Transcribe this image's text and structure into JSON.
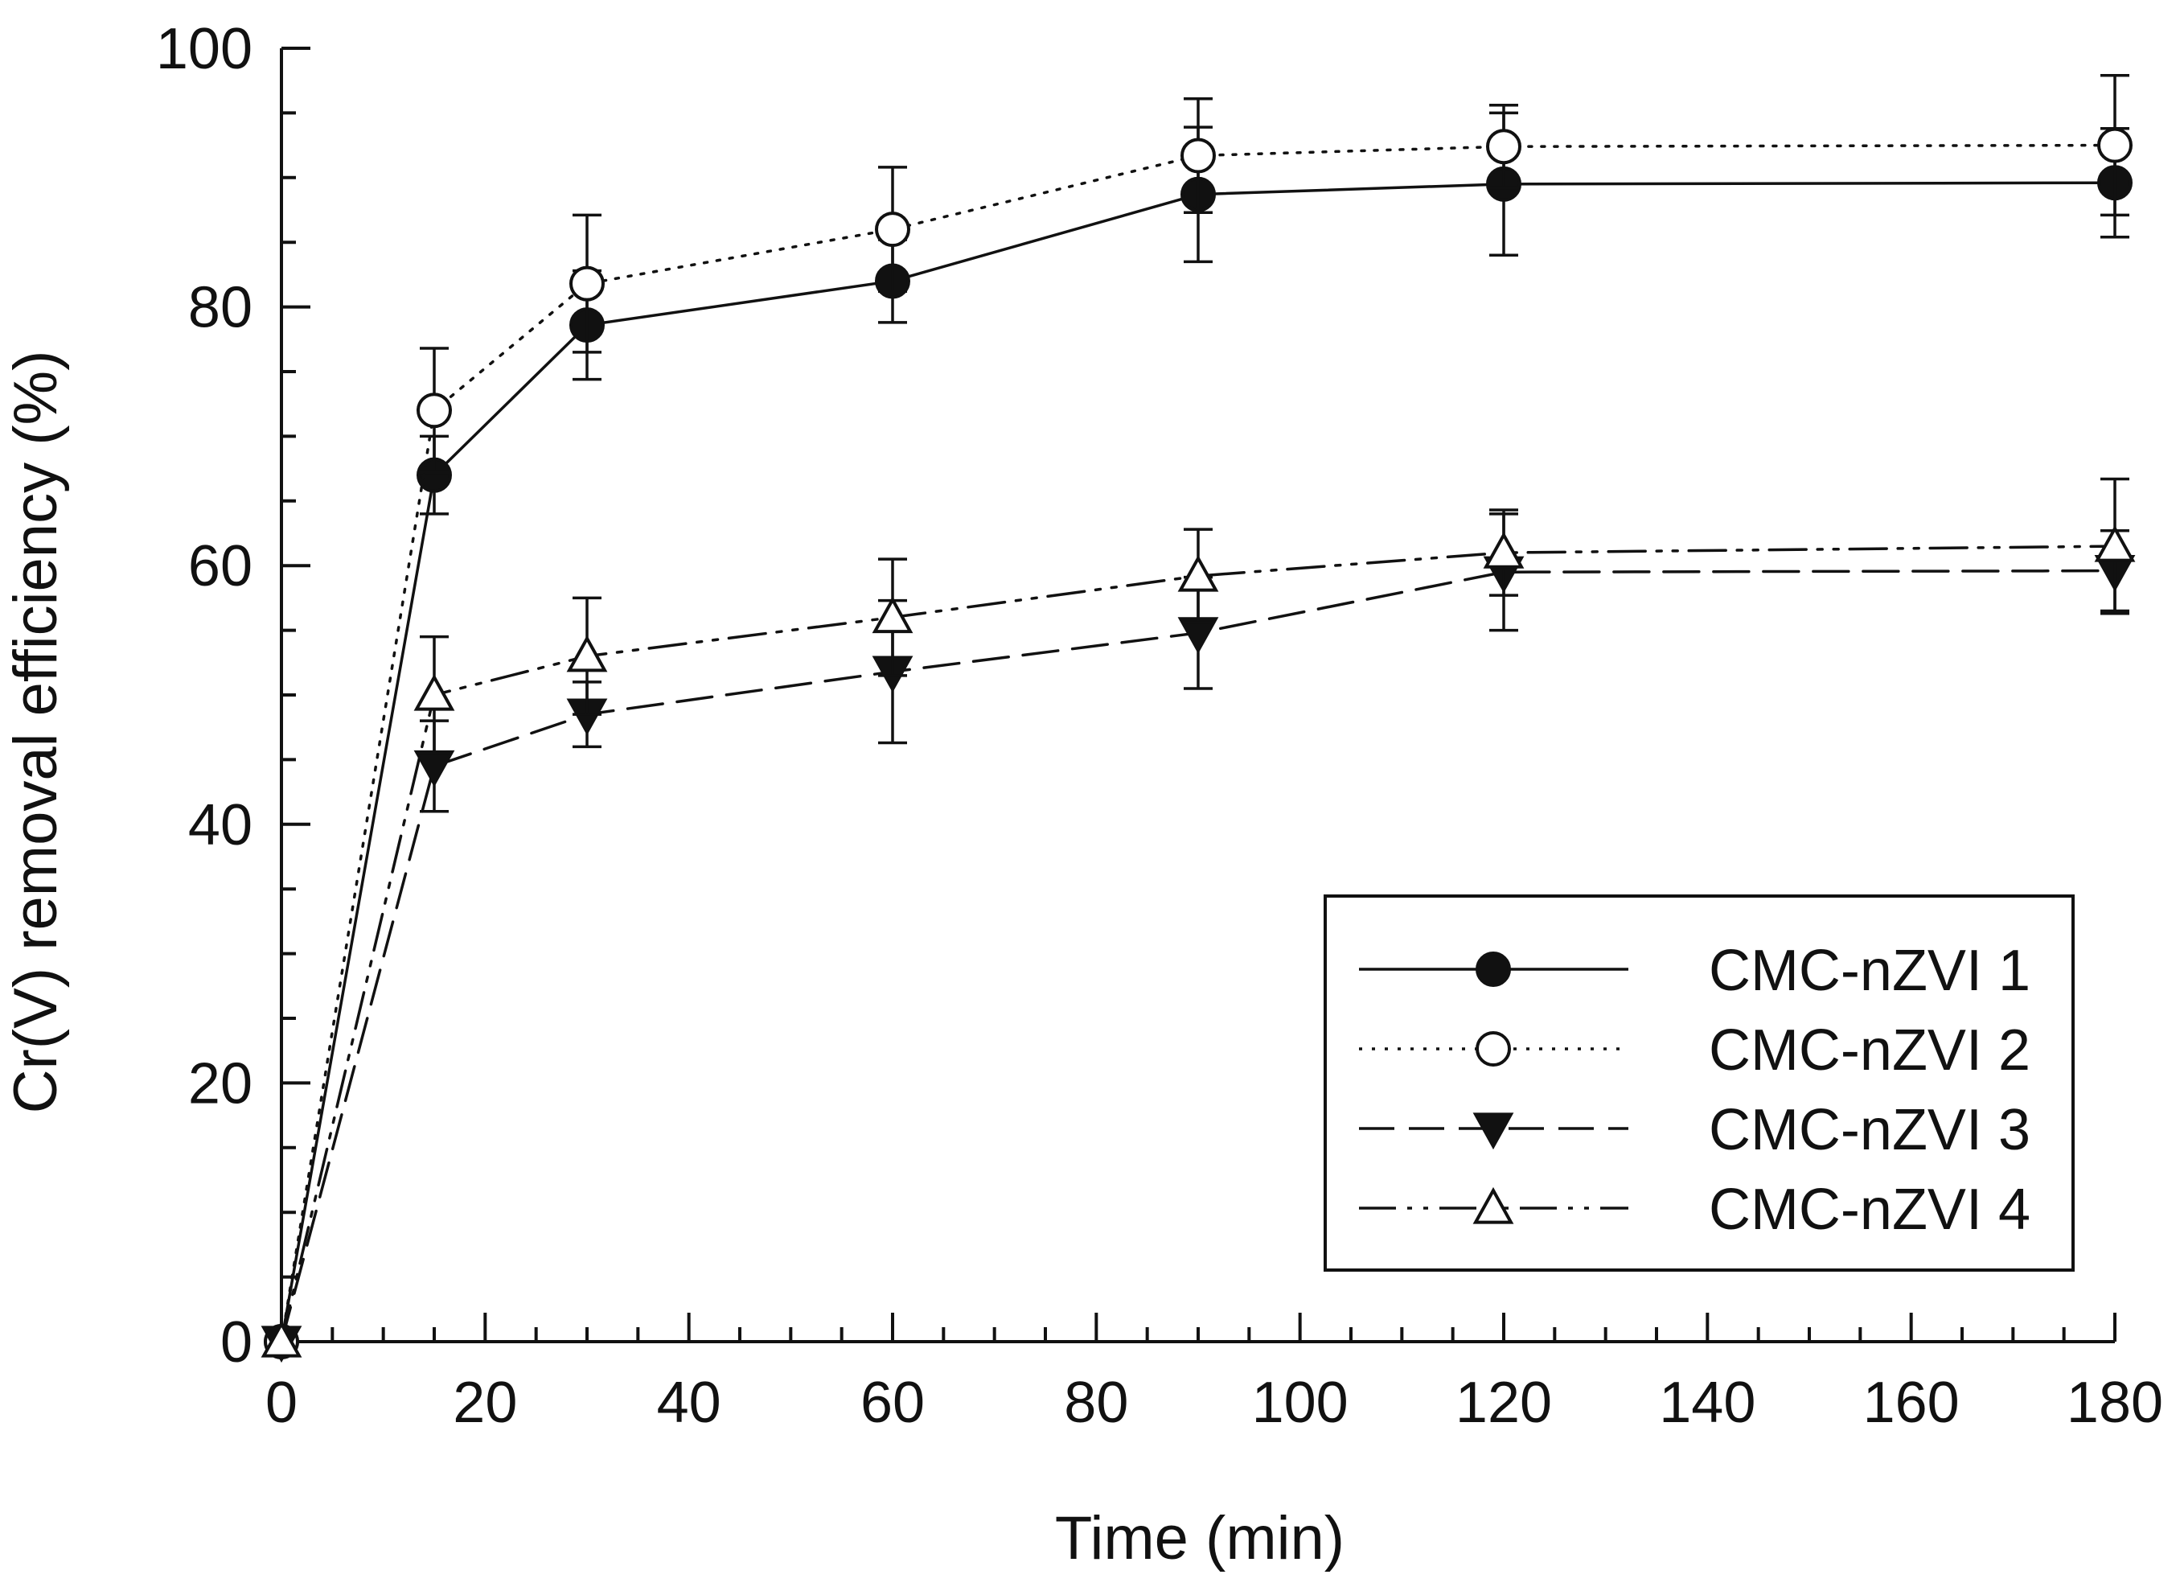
{
  "chart_data": {
    "type": "line",
    "title": "",
    "xlabel": "Time (min)",
    "ylabel": "Cr(V) removal efficiency (%)",
    "xlim": [
      0,
      180
    ],
    "ylim": [
      0,
      100
    ],
    "x_ticks": [
      0,
      20,
      40,
      60,
      80,
      100,
      120,
      140,
      160,
      180
    ],
    "y_ticks": [
      0,
      20,
      40,
      60,
      80,
      100
    ],
    "grid": false,
    "legend_position": "bottom-right",
    "x": [
      0,
      15,
      30,
      60,
      90,
      120,
      180
    ],
    "series": [
      {
        "name": "CMC-nZVI 1",
        "marker": "filled-circle",
        "line": "solid",
        "values": [
          0,
          67,
          78.6,
          82,
          88.7,
          89.5,
          89.6
        ],
        "errors": [
          0,
          3,
          4.2,
          3.2,
          5.2,
          5.5,
          4.2
        ]
      },
      {
        "name": "CMC-nZVI 2",
        "marker": "open-circle",
        "line": "dotted",
        "values": [
          0,
          72,
          81.8,
          86,
          91.7,
          92.4,
          92.5
        ],
        "errors": [
          0,
          4.8,
          5.3,
          4.8,
          4.4,
          3.2,
          5.4
        ]
      },
      {
        "name": "CMC-nZVI 3",
        "marker": "filled-triangle-down",
        "line": "dashed",
        "values": [
          0,
          44.5,
          48.5,
          51.8,
          54.8,
          59.5,
          59.6
        ],
        "errors": [
          0,
          3.5,
          2.5,
          5.5,
          4.3,
          4.5,
          3.1
        ]
      },
      {
        "name": "CMC-nZVI 4",
        "marker": "open-triangle-up",
        "line": "dash-dot-dot",
        "values": [
          0,
          50,
          53,
          56,
          59.2,
          61,
          61.5
        ],
        "errors": [
          0,
          4.5,
          4.5,
          4.5,
          3.6,
          3.3,
          5.2
        ]
      }
    ]
  }
}
